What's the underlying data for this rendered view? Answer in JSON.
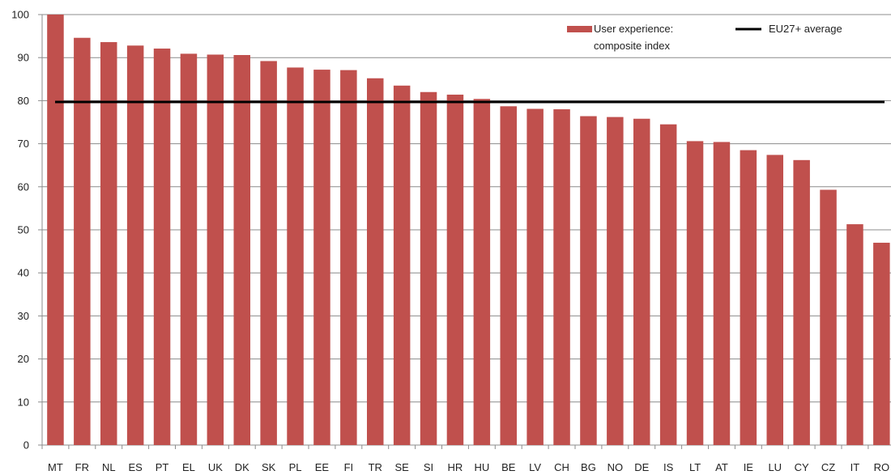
{
  "chart_data": {
    "type": "bar",
    "categories": [
      "MT",
      "FR",
      "NL",
      "ES",
      "PT",
      "EL",
      "UK",
      "DK",
      "SK",
      "PL",
      "EE",
      "FI",
      "TR",
      "SE",
      "SI",
      "HR",
      "HU",
      "BE",
      "LV",
      "CH",
      "BG",
      "NO",
      "DE",
      "IS",
      "LT",
      "AT",
      "IE",
      "LU",
      "CY",
      "CZ",
      "IT",
      "RO"
    ],
    "series": [
      {
        "name": "User experience: composite index",
        "legend_lines": [
          "User experience:",
          "composite index"
        ],
        "color": "#c0504d",
        "values": [
          100,
          94.6,
          93.6,
          92.8,
          92.1,
          90.9,
          90.7,
          90.6,
          89.2,
          87.7,
          87.2,
          87.1,
          85.2,
          83.5,
          82.0,
          81.4,
          80.4,
          78.7,
          78.1,
          78.0,
          76.4,
          76.2,
          75.8,
          74.5,
          70.6,
          70.4,
          68.5,
          67.4,
          66.2,
          59.3,
          51.3,
          47.0
        ]
      }
    ],
    "reference_line": {
      "name": "EU27+ average",
      "value": 79.7,
      "color": "#000000"
    },
    "ylim": [
      0,
      100
    ],
    "yticks": [
      0,
      10,
      20,
      30,
      40,
      50,
      60,
      70,
      80,
      90,
      100
    ],
    "grid": true,
    "legend_position": "top-right",
    "title": "",
    "xlabel": "",
    "ylabel": ""
  }
}
